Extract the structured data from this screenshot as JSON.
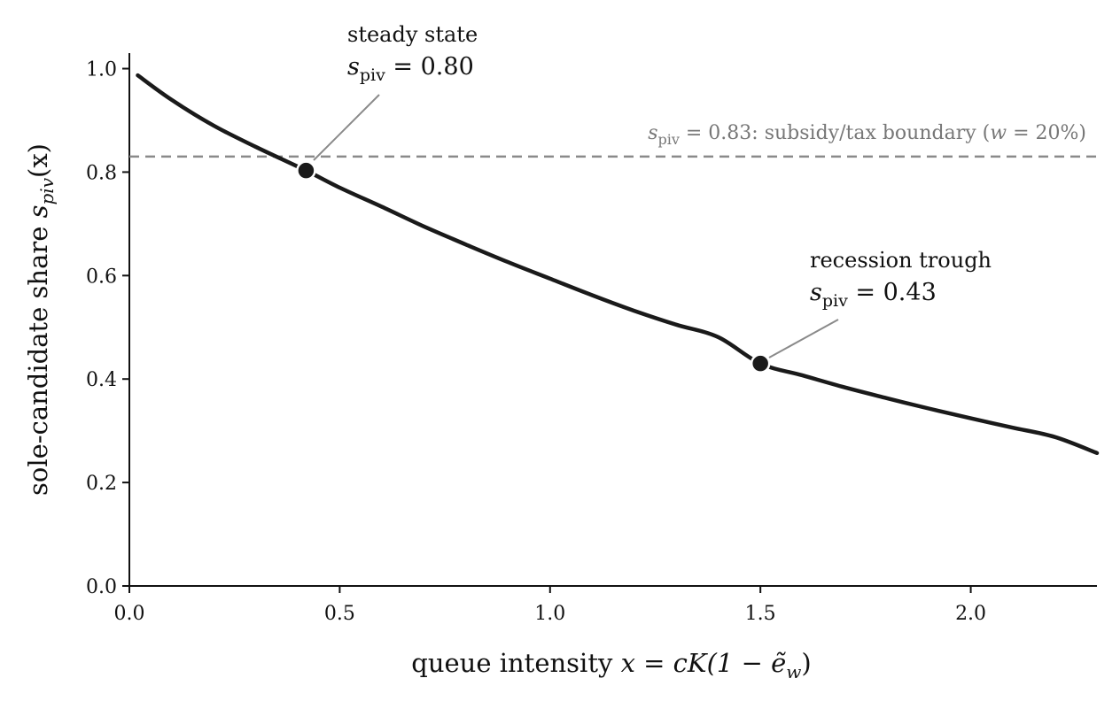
{
  "chart_data": {
    "type": "line",
    "xlabel": {
      "prefix": "queue intensity ",
      "math": "x = cK(1 − ẽ",
      "sub": "w",
      "suffix": ")"
    },
    "ylabel": {
      "prefix": "sole-candidate share ",
      "math": "s",
      "sub": "piv",
      "suffix": "(x)"
    },
    "xlim": [
      0,
      2.3
    ],
    "ylim": [
      0,
      1.03
    ],
    "xticks": [
      {
        "value": 0.0,
        "label": "0.0"
      },
      {
        "value": 0.5,
        "label": "0.5"
      },
      {
        "value": 1.0,
        "label": "1.0"
      },
      {
        "value": 1.5,
        "label": "1.5"
      },
      {
        "value": 2.0,
        "label": "2.0"
      }
    ],
    "yticks": [
      {
        "value": 0.0,
        "label": "0.0"
      },
      {
        "value": 0.2,
        "label": "0.2"
      },
      {
        "value": 0.4,
        "label": "0.4"
      },
      {
        "value": 0.6,
        "label": "0.6"
      },
      {
        "value": 0.8,
        "label": "0.8"
      },
      {
        "value": 1.0,
        "label": "1.0"
      }
    ],
    "grid": false,
    "series": [
      {
        "color": "#1a1a1a",
        "x": [
          0.02,
          0.1,
          0.2,
          0.3,
          0.42,
          0.5,
          0.6,
          0.7,
          0.8,
          0.9,
          1.0,
          1.1,
          1.2,
          1.3,
          1.4,
          1.5,
          1.6,
          1.7,
          1.8,
          1.9,
          2.0,
          2.1,
          2.2,
          2.3
        ],
        "y": [
          0.987,
          0.94,
          0.89,
          0.849,
          0.803,
          0.77,
          0.733,
          0.695,
          0.66,
          0.626,
          0.594,
          0.562,
          0.532,
          0.505,
          0.481,
          0.43,
          0.407,
          0.384,
          0.363,
          0.343,
          0.324,
          0.306,
          0.288,
          0.257
        ]
      }
    ],
    "reference_line": {
      "y": 0.83,
      "color": "#8a8a8a",
      "style": "dashed",
      "label": {
        "math_var": "s",
        "sub": "piv",
        "eq": " = 0.83",
        "text": ": subsidy/tax boundary (",
        "w": "w",
        "pct": " = 20%)"
      }
    },
    "points": [
      {
        "name": "steady-state",
        "x": 0.42,
        "y": 0.803,
        "label": "steady state",
        "math_var": "s",
        "sub": "piv",
        "value_text": " = 0.80"
      },
      {
        "name": "recession-trough",
        "x": 1.5,
        "y": 0.43,
        "label": "recession trough",
        "math_var": "s",
        "sub": "piv",
        "value_text": " = 0.43"
      }
    ]
  }
}
